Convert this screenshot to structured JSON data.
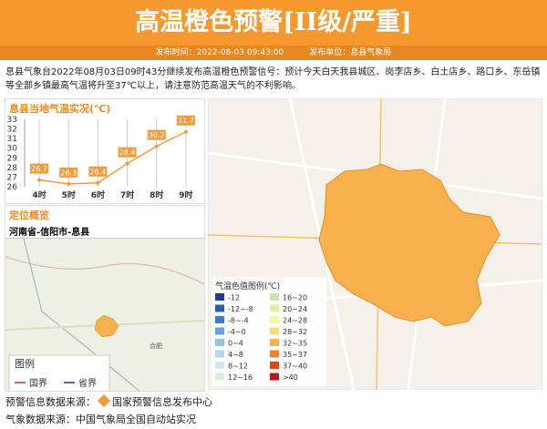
{
  "header": {
    "title": "高温橙色预警[II级/严重]",
    "publish_time": "发布时间：2022-08-03 09:43:00",
    "publisher": "发布单位：息县气象局"
  },
  "body": {
    "text": "息县气象台2022年08月03日09时43分继续发布高温橙色预警信号：预计今天白天我县城区、岗李店乡、白土店乡、路口乡、东岳镇等全部乡镇最高气温将升至37℃以上，请注意防范高温天气的不利影响。"
  },
  "temperature_chart": {
    "type": "line",
    "title": "息县当地气温实况(℃)",
    "categories": [
      "4时",
      "5时",
      "6时",
      "7时",
      "8时",
      "9时"
    ],
    "values": [
      26.7,
      26.3,
      26.4,
      28.4,
      30.2,
      31.7
    ],
    "color": "#f39a3a",
    "ylim": [
      26,
      33
    ],
    "yticks": [
      26,
      27,
      28,
      29,
      30,
      31,
      32,
      33
    ],
    "grid": true
  },
  "location": {
    "title": "定位概览",
    "path": "河南省-信阳市-息县",
    "city_label": "合肥",
    "legend": {
      "title": "图例",
      "items": [
        {
          "name": "国界",
          "color": "#c8607c"
        },
        {
          "name": "省界",
          "color": "#4a6fb0"
        }
      ]
    }
  },
  "map": {
    "legend": {
      "title": "气温色值图例(℃)",
      "items": [
        {
          "label": "-12",
          "color": "#1c3f8c"
        },
        {
          "label": "-12~-8",
          "color": "#2c5ea8"
        },
        {
          "label": "-8~-4",
          "color": "#3f7ec6"
        },
        {
          "label": "-4~0",
          "color": "#6aa3da"
        },
        {
          "label": "0~4",
          "color": "#97c2e6"
        },
        {
          "label": "4~8",
          "color": "#b5d6ef"
        },
        {
          "label": "8~12",
          "color": "#d2e7f4"
        },
        {
          "label": "12~16",
          "color": "#d8efd6"
        },
        {
          "label": "16~20",
          "color": "#c5e6ad"
        },
        {
          "label": "20~24",
          "color": "#dff0a0"
        },
        {
          "label": "24~28",
          "color": "#faf3a0"
        },
        {
          "label": "28~32",
          "color": "#fbd980"
        },
        {
          "label": "32~35",
          "color": "#f8b04c"
        },
        {
          "label": "35~37",
          "color": "#f07e2c"
        },
        {
          "label": "37~40",
          "color": "#de4420"
        },
        {
          "label": ">40",
          "color": "#c0121c"
        }
      ]
    }
  },
  "footer": {
    "warning_source_label": "预警信息数据来源：",
    "warning_source": "国家预警信息发布中心",
    "data_source": "气象数据来源：中国气象局全国自动站实况"
  }
}
